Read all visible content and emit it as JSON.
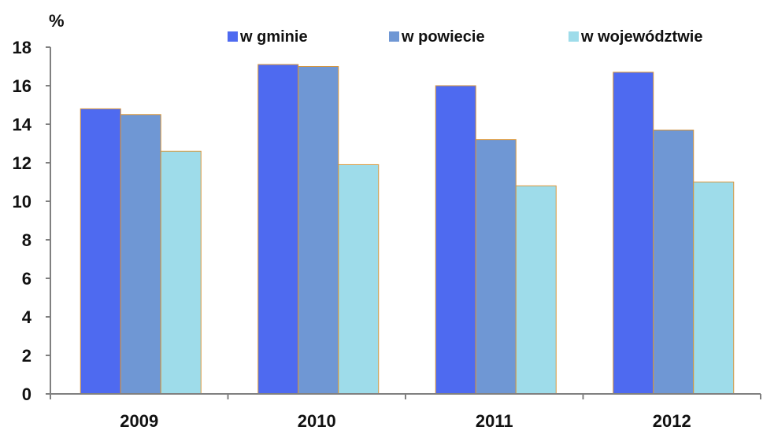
{
  "colors": {
    "series": [
      "#4E6AF0",
      "#6F97D4",
      "#9EDCEA"
    ],
    "bar_outline": "#D8963A",
    "axis": "#808080",
    "text": "#111111"
  },
  "chart_data": {
    "type": "bar",
    "title": "",
    "xlabel": "",
    "ylabel": "%",
    "categories": [
      "2009",
      "2010",
      "2011",
      "2012"
    ],
    "series": [
      {
        "name": "w gminie",
        "values": [
          14.8,
          17.1,
          16.0,
          16.7
        ]
      },
      {
        "name": "w powiecie",
        "values": [
          14.5,
          17.0,
          13.2,
          13.7
        ]
      },
      {
        "name": "w województwie",
        "values": [
          12.6,
          11.9,
          10.8,
          11.0
        ]
      }
    ],
    "ylim": [
      0,
      18
    ],
    "yticks": [
      0,
      2,
      4,
      6,
      8,
      10,
      12,
      14,
      16,
      18
    ],
    "grid": false,
    "legend_position": "top"
  }
}
